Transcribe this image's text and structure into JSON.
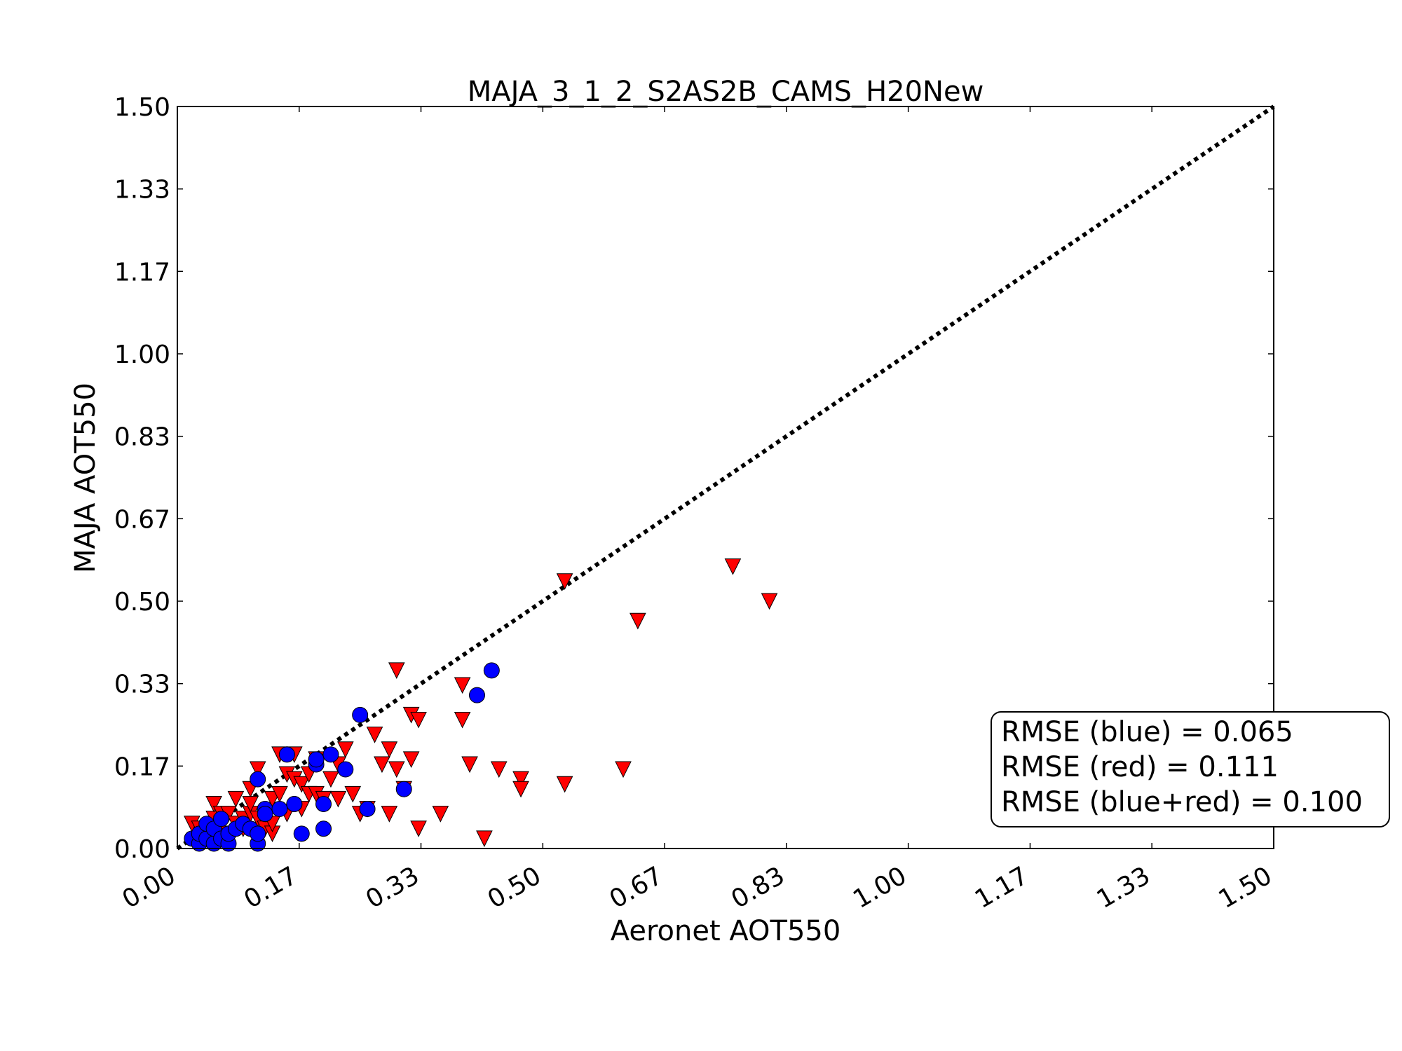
{
  "chart_data": {
    "type": "scatter",
    "title": "MAJA_3_1_2_S2AS2B_CAMS_H20New",
    "xlabel": "Aeronet AOT550",
    "ylabel": "MAJA AOT550",
    "xlim": [
      0,
      1.5
    ],
    "ylim": [
      0,
      1.5
    ],
    "xticks": [
      0.0,
      0.1667,
      0.3333,
      0.5,
      0.6667,
      0.8333,
      1.0,
      1.1667,
      1.3333,
      1.5
    ],
    "yticks": [
      0.0,
      0.1667,
      0.3333,
      0.5,
      0.6667,
      0.8333,
      1.0,
      1.1667,
      1.3333,
      1.5
    ],
    "xtick_labels": [
      "0.00",
      "0.17",
      "0.33",
      "0.50",
      "0.67",
      "0.83",
      "1.00",
      "1.17",
      "1.33",
      "1.50"
    ],
    "ytick_labels": [
      "0.00",
      "0.17",
      "0.33",
      "0.50",
      "0.67",
      "0.83",
      "1.00",
      "1.17",
      "1.33",
      "1.50"
    ],
    "grid": false,
    "reference_line": {
      "style": "dotted",
      "color": "#000000",
      "from": [
        0,
        0
      ],
      "to": [
        1.5,
        1.5
      ]
    },
    "series": [
      {
        "color": "#ff0000",
        "marker": "triangle-down",
        "points": [
          [
            0.02,
            0.05
          ],
          [
            0.03,
            0.04
          ],
          [
            0.04,
            0.03
          ],
          [
            0.05,
            0.06
          ],
          [
            0.06,
            0.05
          ],
          [
            0.05,
            0.09
          ],
          [
            0.06,
            0.07
          ],
          [
            0.07,
            0.03
          ],
          [
            0.07,
            0.07
          ],
          [
            0.08,
            0.05
          ],
          [
            0.08,
            0.1
          ],
          [
            0.09,
            0.06
          ],
          [
            0.09,
            0.04
          ],
          [
            0.1,
            0.07
          ],
          [
            0.1,
            0.12
          ],
          [
            0.1,
            0.09
          ],
          [
            0.11,
            0.06
          ],
          [
            0.11,
            0.16
          ],
          [
            0.12,
            0.04
          ],
          [
            0.12,
            0.07
          ],
          [
            0.13,
            0.1
          ],
          [
            0.13,
            0.03
          ],
          [
            0.13,
            0.05
          ],
          [
            0.14,
            0.11
          ],
          [
            0.14,
            0.19
          ],
          [
            0.15,
            0.15
          ],
          [
            0.15,
            0.07
          ],
          [
            0.16,
            0.14
          ],
          [
            0.16,
            0.19
          ],
          [
            0.17,
            0.08
          ],
          [
            0.17,
            0.13
          ],
          [
            0.18,
            0.11
          ],
          [
            0.18,
            0.15
          ],
          [
            0.19,
            0.18
          ],
          [
            0.19,
            0.11
          ],
          [
            0.2,
            0.1
          ],
          [
            0.21,
            0.14
          ],
          [
            0.22,
            0.17
          ],
          [
            0.22,
            0.1
          ],
          [
            0.23,
            0.2
          ],
          [
            0.24,
            0.11
          ],
          [
            0.25,
            0.07
          ],
          [
            0.26,
            0.08
          ],
          [
            0.27,
            0.23
          ],
          [
            0.28,
            0.17
          ],
          [
            0.29,
            0.2
          ],
          [
            0.29,
            0.07
          ],
          [
            0.3,
            0.16
          ],
          [
            0.31,
            0.12
          ],
          [
            0.32,
            0.18
          ],
          [
            0.33,
            0.04
          ],
          [
            0.3,
            0.36
          ],
          [
            0.32,
            0.27
          ],
          [
            0.33,
            0.26
          ],
          [
            0.36,
            0.07
          ],
          [
            0.39,
            0.26
          ],
          [
            0.39,
            0.33
          ],
          [
            0.4,
            0.17
          ],
          [
            0.42,
            0.02
          ],
          [
            0.44,
            0.16
          ],
          [
            0.47,
            0.14
          ],
          [
            0.47,
            0.12
          ],
          [
            0.53,
            0.13
          ],
          [
            0.53,
            0.54
          ],
          [
            0.61,
            0.16
          ],
          [
            0.63,
            0.46
          ],
          [
            0.76,
            0.57
          ],
          [
            0.81,
            0.5
          ]
        ]
      },
      {
        "color": "#0000ff",
        "marker": "circle",
        "points": [
          [
            0.02,
            0.02
          ],
          [
            0.03,
            0.01
          ],
          [
            0.03,
            0.03
          ],
          [
            0.04,
            0.02
          ],
          [
            0.04,
            0.05
          ],
          [
            0.05,
            0.01
          ],
          [
            0.05,
            0.04
          ],
          [
            0.06,
            0.02
          ],
          [
            0.06,
            0.06
          ],
          [
            0.07,
            0.01
          ],
          [
            0.07,
            0.03
          ],
          [
            0.08,
            0.04
          ],
          [
            0.09,
            0.05
          ],
          [
            0.1,
            0.04
          ],
          [
            0.11,
            0.01
          ],
          [
            0.11,
            0.03
          ],
          [
            0.11,
            0.14
          ],
          [
            0.12,
            0.08
          ],
          [
            0.12,
            0.07
          ],
          [
            0.14,
            0.08
          ],
          [
            0.15,
            0.19
          ],
          [
            0.16,
            0.09
          ],
          [
            0.16,
            0.09
          ],
          [
            0.17,
            0.03
          ],
          [
            0.19,
            0.17
          ],
          [
            0.19,
            0.18
          ],
          [
            0.2,
            0.04
          ],
          [
            0.2,
            0.09
          ],
          [
            0.21,
            0.19
          ],
          [
            0.23,
            0.16
          ],
          [
            0.25,
            0.27
          ],
          [
            0.26,
            0.08
          ],
          [
            0.31,
            0.12
          ],
          [
            0.41,
            0.31
          ],
          [
            0.43,
            0.36
          ]
        ]
      }
    ],
    "annotation": {
      "lines": [
        "RMSE (blue) = 0.065",
        "RMSE (red) = 0.111",
        "RMSE (blue+red) = 0.100"
      ]
    }
  }
}
